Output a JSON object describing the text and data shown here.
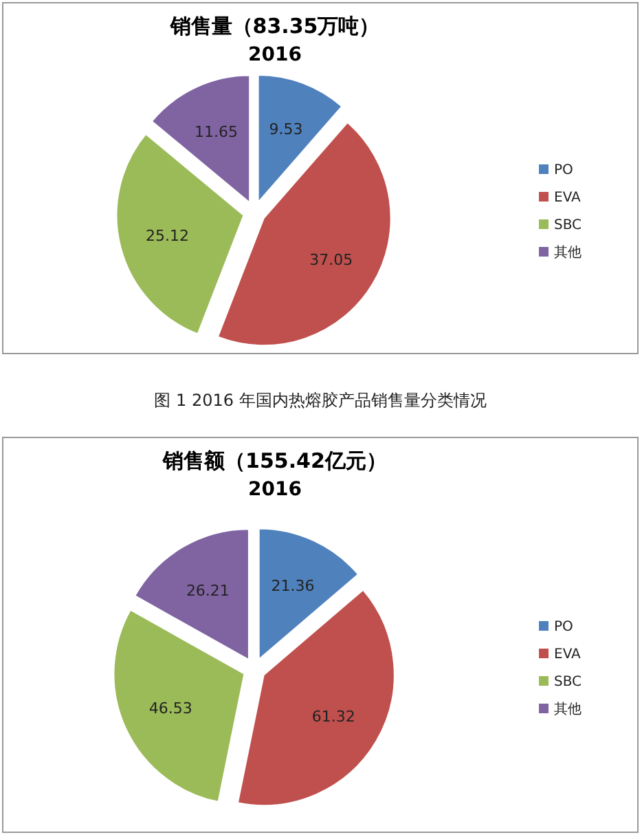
{
  "chart_data": [
    {
      "type": "pie",
      "title": "销售量（83.35万吨）",
      "subtitle": "2016",
      "categories": [
        "PO",
        "EVA",
        "SBC",
        "其他"
      ],
      "values": [
        9.53,
        37.05,
        25.12,
        11.65
      ],
      "colors": [
        "#4f81bd",
        "#c0504d",
        "#9bbb59",
        "#8064a2"
      ],
      "data_labels": true,
      "legend": "right",
      "annotations": [
        "图 1  2016 年国内热熔胶产品销售量分类情况"
      ]
    },
    {
      "type": "pie",
      "title": "销售额（155.42亿元）",
      "subtitle": "2016",
      "categories": [
        "PO",
        "EVA",
        "SBC",
        "其他"
      ],
      "values": [
        21.36,
        61.32,
        46.53,
        26.21
      ],
      "colors": [
        "#4f81bd",
        "#c0504d",
        "#9bbb59",
        "#8064a2"
      ],
      "data_labels": true,
      "legend": "right"
    }
  ]
}
